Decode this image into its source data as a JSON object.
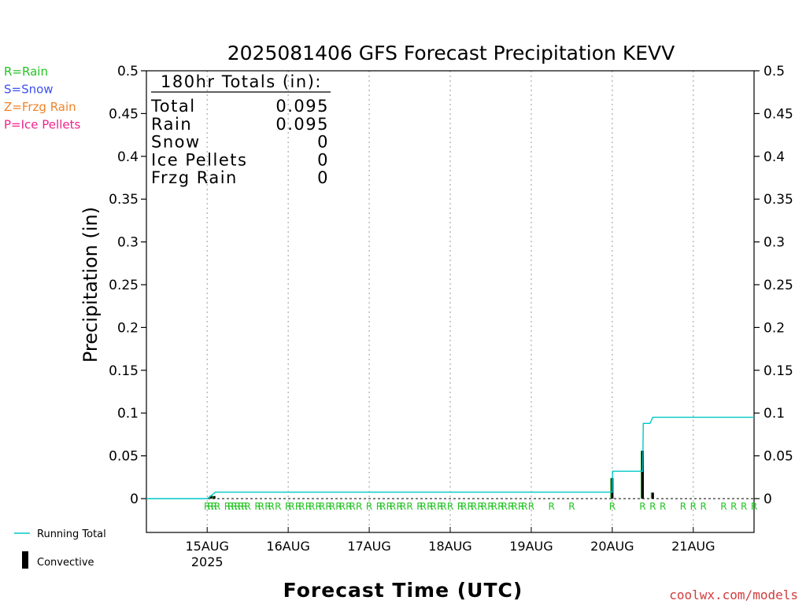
{
  "chart_data": {
    "type": "line",
    "title": "2025081406 GFS Forecast Precipitation KEVV",
    "xlabel": "Forecast Time (UTC)",
    "ylabel": "Precipitation (in)",
    "ylim": [
      0,
      0.5
    ],
    "yticks": [
      0,
      0.05,
      0.1,
      0.15,
      0.2,
      0.25,
      0.3,
      0.35,
      0.4,
      0.45,
      0.5
    ],
    "ytick_labels": [
      "0",
      "0.05",
      "0.1",
      "0.15",
      "0.2",
      "0.25",
      "0.3",
      "0.35",
      "0.4",
      "0.45",
      "0.5"
    ],
    "xlim_hours": [
      -18,
      162
    ],
    "xticks": [
      {
        "hour": 0,
        "label": "15AUG",
        "sublabel": "2025"
      },
      {
        "hour": 24,
        "label": "16AUG",
        "sublabel": ""
      },
      {
        "hour": 48,
        "label": "17AUG",
        "sublabel": ""
      },
      {
        "hour": 72,
        "label": "18AUG",
        "sublabel": ""
      },
      {
        "hour": 96,
        "label": "19AUG",
        "sublabel": ""
      },
      {
        "hour": 120,
        "label": "20AUG",
        "sublabel": ""
      },
      {
        "hour": 144,
        "label": "21AUG",
        "sublabel": ""
      }
    ],
    "grid": "vertical-dotted",
    "legend_top": [
      {
        "text": "R=Rain",
        "color": "#22c322"
      },
      {
        "text": "S=Snow",
        "color": "#3c50f0"
      },
      {
        "text": "Z=Frzg Rain",
        "color": "#f08228"
      },
      {
        "text": "P=Ice Pellets",
        "color": "#f0228c"
      }
    ],
    "legend_bottom": [
      {
        "text": "Running Total",
        "color": "#00c8c8",
        "kind": "line"
      },
      {
        "text": "Convective",
        "color": "#000000",
        "kind": "bar"
      }
    ],
    "totals": {
      "heading": "180hr Totals (in):",
      "rows": [
        {
          "label": "Total",
          "value": "0.095"
        },
        {
          "label": "Rain",
          "value": "0.095"
        },
        {
          "label": "Snow",
          "value": "0"
        },
        {
          "label": "Ice Pellets",
          "value": "0"
        },
        {
          "label": "Frzg Rain",
          "value": "0"
        }
      ]
    },
    "running_total": {
      "name": "Running Total",
      "points": [
        [
          -18,
          0
        ],
        [
          0,
          0
        ],
        [
          1.2,
          0.0034
        ],
        [
          2.4,
          0.0075
        ],
        [
          117,
          0.0075
        ],
        [
          120,
          0.0075
        ],
        [
          120.1,
          0.032
        ],
        [
          129,
          0.032
        ],
        [
          129.2,
          0.088
        ],
        [
          131.2,
          0.088
        ],
        [
          132,
          0.095
        ],
        [
          162,
          0.095
        ]
      ]
    },
    "convective": {
      "name": "Convective",
      "bars": [
        {
          "hour": 1.2,
          "value": 0.0034
        },
        {
          "hour": 2.1,
          "value": 0.003
        },
        {
          "hour": 120,
          "value": 0.024
        },
        {
          "hour": 129,
          "value": 0.056
        },
        {
          "hour": 132,
          "value": 0.007
        }
      ]
    },
    "precip_type_marks": {
      "symbol": "R",
      "hours": [
        0,
        1,
        2,
        3,
        6,
        7,
        8,
        9,
        10,
        11,
        12,
        15,
        16,
        18,
        19,
        21,
        24,
        25,
        27,
        28,
        30,
        31,
        33,
        34,
        36,
        37,
        39,
        40,
        42,
        43,
        45,
        48,
        51,
        52,
        54,
        55,
        57,
        58,
        60,
        63,
        64,
        66,
        67,
        69,
        70,
        72,
        75,
        76,
        78,
        79,
        81,
        82,
        84,
        85,
        87,
        88,
        90,
        91,
        93,
        94,
        96,
        102,
        108,
        120,
        129,
        132,
        135,
        141,
        144,
        147,
        153,
        156,
        159,
        162
      ]
    },
    "credit": "coolwx.com/models"
  }
}
